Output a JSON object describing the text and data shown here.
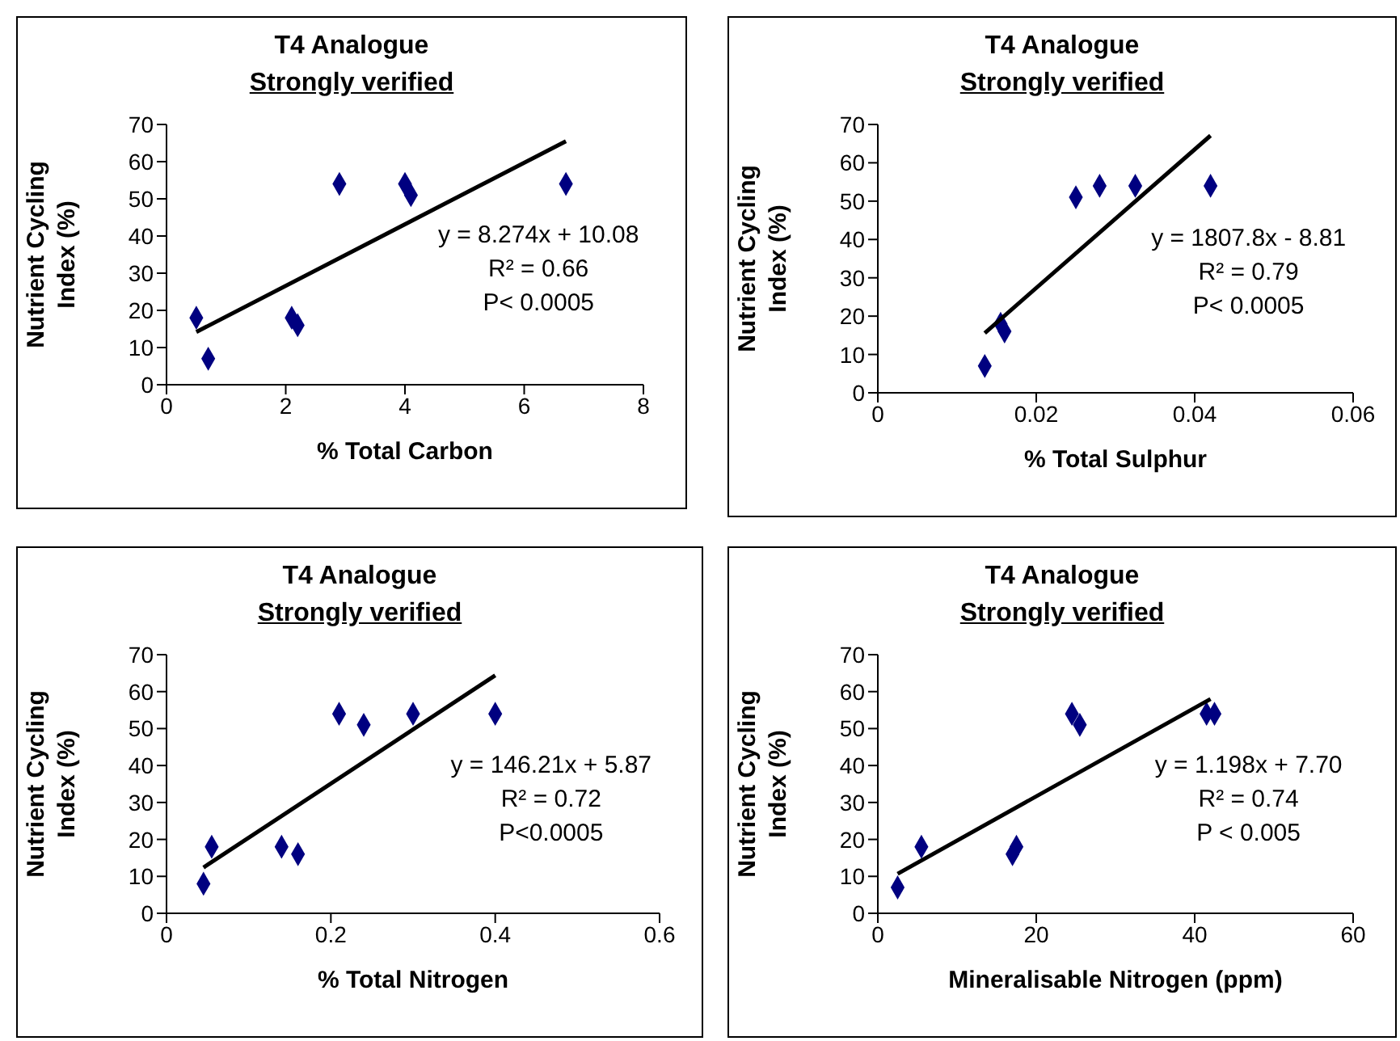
{
  "chart_data": [
    {
      "type": "scatter",
      "title": "T4 Analogue",
      "subtitle": "Strongly verified",
      "xlabel": "% Total Carbon",
      "ylabel": "Nutrient Cycling Index (%)",
      "xlim": [
        0,
        8
      ],
      "xticks": [
        0,
        2,
        4,
        6,
        8
      ],
      "ylim": [
        0,
        70
      ],
      "yticks": [
        0,
        10,
        20,
        30,
        40,
        50,
        60,
        70
      ],
      "series": [
        {
          "type": "scatter",
          "marker": "diamond",
          "color": "#000080",
          "x": [
            0.5,
            0.7,
            2.1,
            2.2,
            2.9,
            4.0,
            4.1,
            6.7
          ],
          "values": [
            18,
            7,
            18,
            16,
            54,
            54,
            51,
            54
          ]
        },
        {
          "type": "line",
          "marker": "none",
          "color": "#000000",
          "x": [
            0.5,
            6.7
          ],
          "values": [
            14.2,
            65.5
          ]
        }
      ],
      "annotations": [
        "y = 8.274x + 10.08",
        "R² = 0.66",
        "P< 0.0005"
      ]
    },
    {
      "type": "scatter",
      "title": "T4 Analogue",
      "subtitle": "Strongly verified",
      "xlabel": "% Total Sulphur",
      "ylabel": "Nutrient Cycling Index (%)",
      "xlim": [
        0,
        0.06
      ],
      "xticks": [
        0,
        0.02,
        0.04,
        0.06
      ],
      "ylim": [
        0,
        70
      ],
      "yticks": [
        0,
        10,
        20,
        30,
        40,
        50,
        60,
        70
      ],
      "series": [
        {
          "type": "scatter",
          "marker": "diamond",
          "color": "#000080",
          "x": [
            0.0135,
            0.0155,
            0.016,
            0.025,
            0.028,
            0.0325,
            0.042
          ],
          "values": [
            7,
            18,
            16,
            51,
            54,
            54,
            54
          ]
        },
        {
          "type": "line",
          "marker": "none",
          "color": "#000000",
          "x": [
            0.0135,
            0.042
          ],
          "values": [
            15.6,
            67.1
          ]
        }
      ],
      "annotations": [
        "y = 1807.8x - 8.81",
        "R² = 0.79",
        "P< 0.0005"
      ]
    },
    {
      "type": "scatter",
      "title": "T4 Analogue",
      "subtitle": "Strongly verified",
      "xlabel": "% Total Nitrogen",
      "ylabel": "Nutrient Cycling Index (%)",
      "xlim": [
        0,
        0.6
      ],
      "xticks": [
        0,
        0.2,
        0.4,
        0.6
      ],
      "ylim": [
        0,
        70
      ],
      "yticks": [
        0,
        10,
        20,
        30,
        40,
        50,
        60,
        70
      ],
      "series": [
        {
          "type": "scatter",
          "marker": "diamond",
          "color": "#000080",
          "x": [
            0.045,
            0.055,
            0.14,
            0.16,
            0.21,
            0.24,
            0.3,
            0.4
          ],
          "values": [
            8,
            18,
            18,
            16,
            54,
            51,
            54,
            54
          ]
        },
        {
          "type": "line",
          "marker": "none",
          "color": "#000000",
          "x": [
            0.045,
            0.4
          ],
          "values": [
            12.4,
            64.4
          ]
        }
      ],
      "annotations": [
        "y = 146.21x + 5.87",
        "R² = 0.72",
        "P<0.0005"
      ]
    },
    {
      "type": "scatter",
      "title": "T4 Analogue",
      "subtitle": "Strongly verified",
      "xlabel": "Mineralisable Nitrogen (ppm)",
      "ylabel": "Nutrient Cycling Index (%)",
      "xlim": [
        0,
        60
      ],
      "xticks": [
        0,
        20,
        40,
        60
      ],
      "ylim": [
        0,
        70
      ],
      "yticks": [
        0,
        10,
        20,
        30,
        40,
        50,
        60,
        70
      ],
      "series": [
        {
          "type": "scatter",
          "marker": "diamond",
          "color": "#000080",
          "x": [
            2.5,
            5.5,
            17,
            17.5,
            24.5,
            25.5,
            41.5,
            42.5
          ],
          "values": [
            7,
            18,
            16,
            18,
            54,
            51,
            54,
            54
          ]
        },
        {
          "type": "line",
          "marker": "none",
          "color": "#000000",
          "x": [
            2.5,
            42
          ],
          "values": [
            10.7,
            58.0
          ]
        }
      ],
      "annotations": [
        "y = 1.198x + 7.70",
        "R² = 0.74",
        "P < 0.005"
      ]
    }
  ]
}
